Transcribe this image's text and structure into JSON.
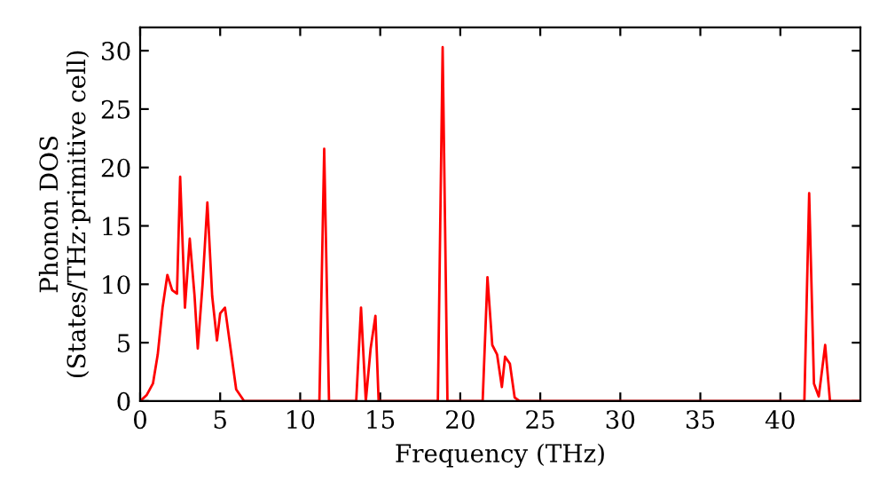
{
  "chart_data": {
    "type": "line",
    "xlabel": "Frequency (THz)",
    "ylabel": "Phonon DOS\n(States/THz·primitive cell)",
    "xlim": [
      0,
      45
    ],
    "ylim": [
      0,
      32
    ],
    "xticks": [
      0,
      5,
      10,
      15,
      20,
      25,
      30,
      35,
      40
    ],
    "yticks": [
      0,
      5,
      10,
      15,
      20,
      25,
      30
    ],
    "grid": false,
    "legend": false,
    "marker": "none",
    "line_style": "solid",
    "series": [
      {
        "color": "#ff0000",
        "x": [
          0,
          0.4,
          0.8,
          1.1,
          1.4,
          1.7,
          2.0,
          2.3,
          2.5,
          2.8,
          3.1,
          3.4,
          3.6,
          3.9,
          4.2,
          4.5,
          4.8,
          5.0,
          5.3,
          5.6,
          6.0,
          6.5,
          11.2,
          11.5,
          11.8,
          13.5,
          13.8,
          14.1,
          14.4,
          14.7,
          14.9,
          15.2,
          18.6,
          18.9,
          19.2,
          21.4,
          21.7,
          22.0,
          22.3,
          22.6,
          22.8,
          23.1,
          23.4,
          23.7,
          41.5,
          41.8,
          42.1,
          42.4,
          42.8,
          43.1,
          45
        ],
        "values": [
          0,
          0.5,
          1.5,
          4,
          8,
          10.8,
          9.5,
          9.2,
          19.2,
          8,
          13.9,
          9,
          4.5,
          10,
          17,
          9,
          5.2,
          7.5,
          8,
          5,
          1,
          0,
          0,
          21.6,
          0,
          0,
          8,
          0,
          4.5,
          7.3,
          0,
          0,
          0,
          30.3,
          0,
          0,
          10.6,
          4.8,
          4.0,
          1.2,
          3.8,
          3.2,
          0.3,
          0,
          0,
          17.8,
          1.5,
          0.4,
          4.8,
          0,
          0
        ]
      }
    ]
  }
}
